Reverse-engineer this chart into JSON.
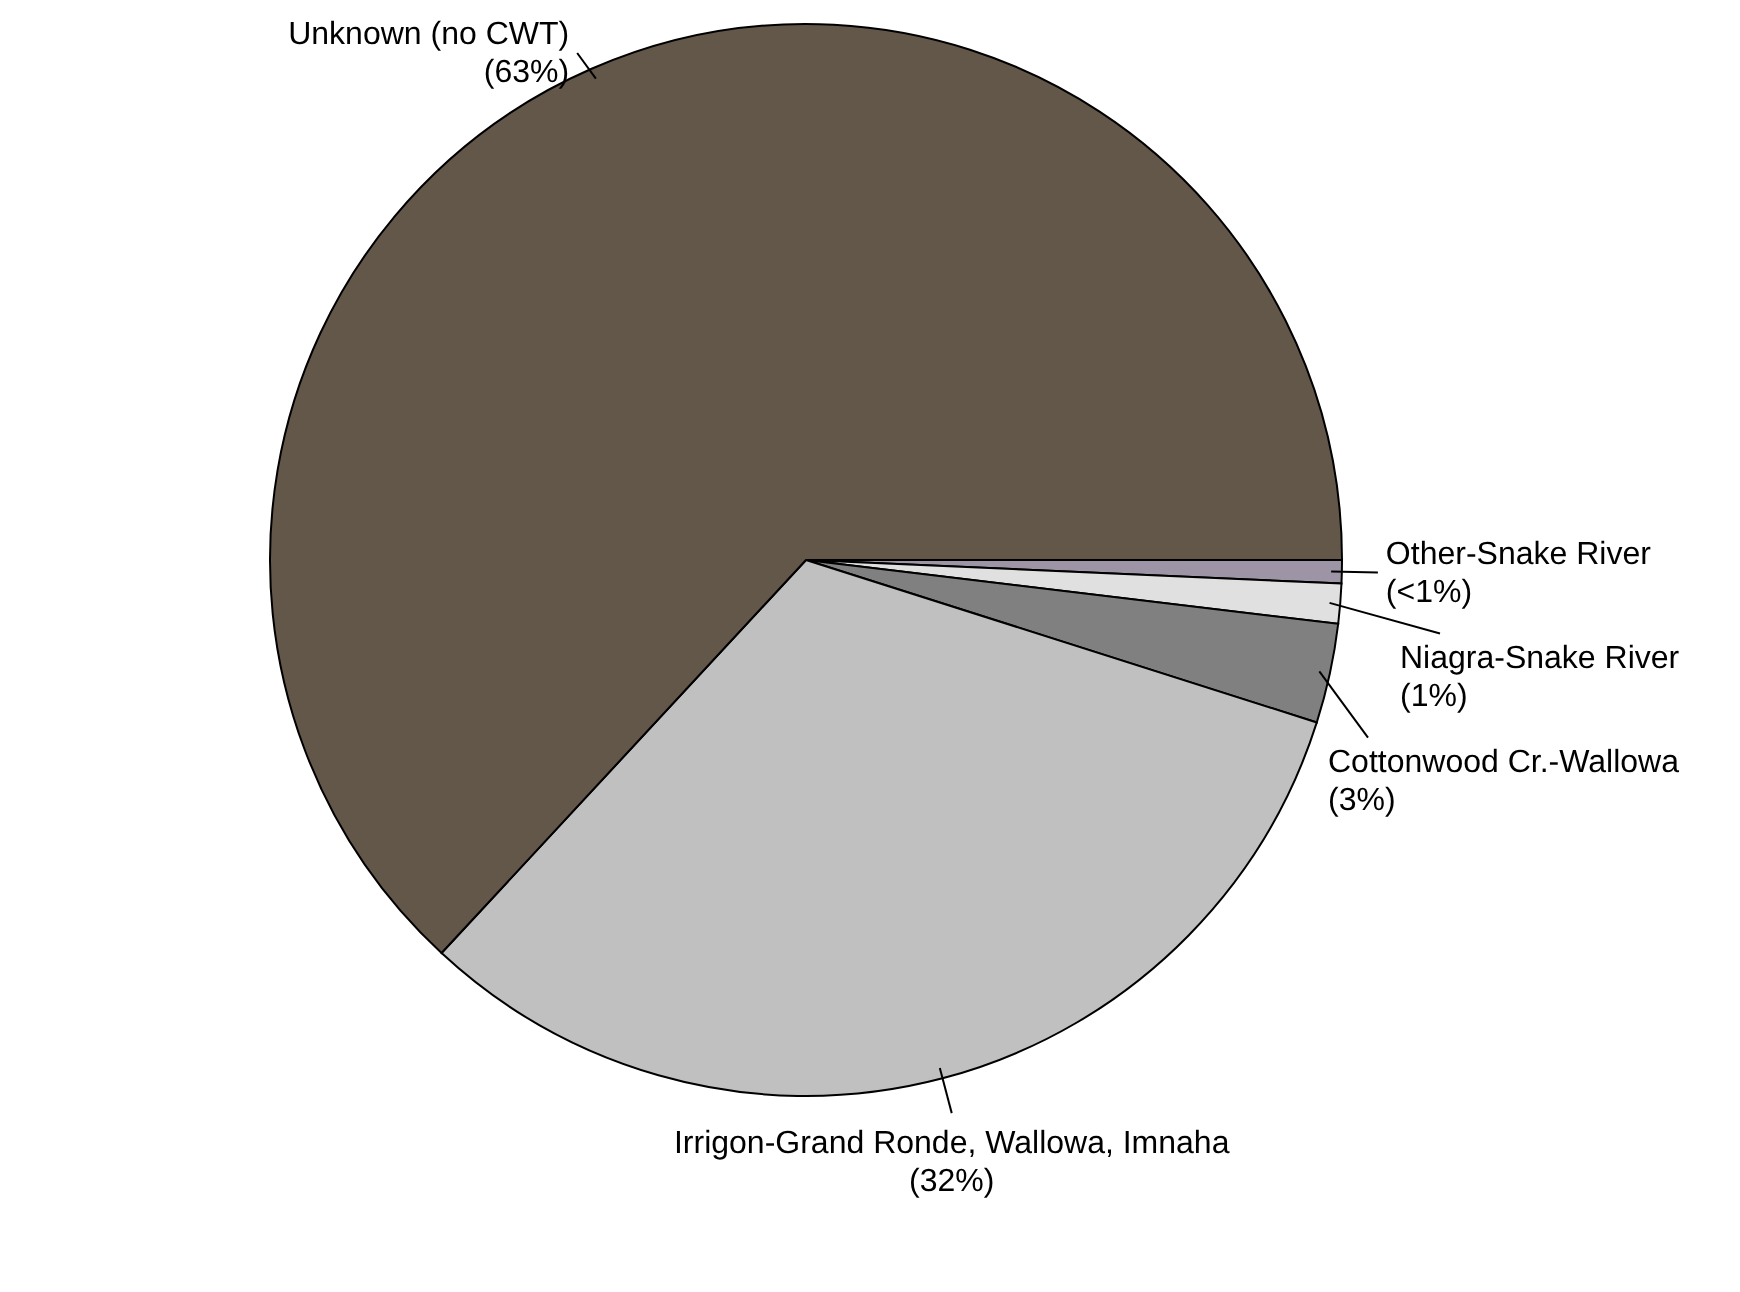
{
  "chart_data": {
    "type": "pie",
    "categories": [
      "Other-Snake River",
      "Niagra-Snake River",
      "Cottonwood Cr.-Wallowa",
      "Irrigon-Grand Ronde, Wallowa, Imnaha",
      "Unknown (no CWT)"
    ],
    "values": [
      0.7,
      1.2,
      3,
      32,
      63.1
    ],
    "value_labels": [
      "(<1%)",
      "(1%)",
      "(3%)",
      "(32%)",
      "(63%)"
    ],
    "colors": [
      "#9d94a6",
      "#e0e0e0",
      "#808080",
      "#c0c0c0",
      "#63574a"
    ]
  }
}
